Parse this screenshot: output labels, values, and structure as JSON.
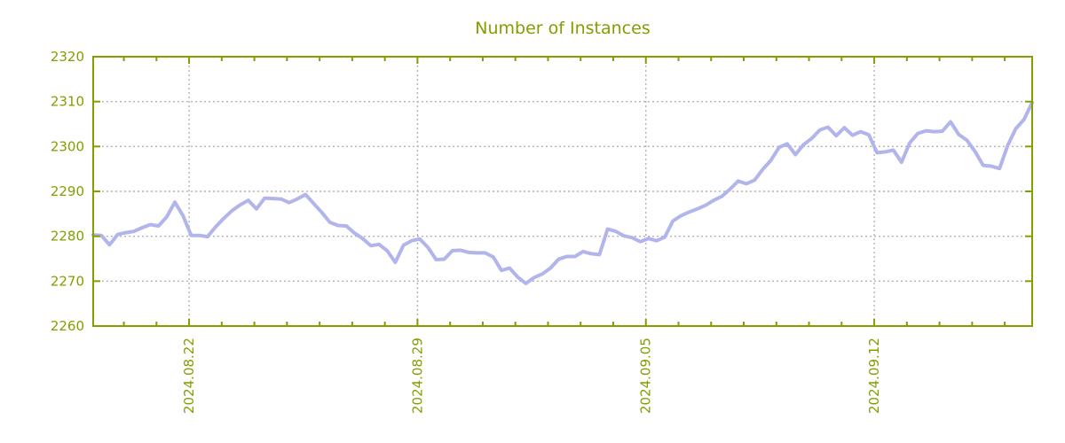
{
  "title": "Number of Instances",
  "colors": {
    "accent_olive": "#80a000",
    "series_line": "#b2b4ec",
    "gridline": "#b3b3b3",
    "background": "#ffffff"
  },
  "chart_data": {
    "type": "line",
    "title": "Number of Instances",
    "xlabel": "",
    "ylabel": "",
    "ylim": [
      2260,
      2320
    ],
    "yticks": [
      2260,
      2270,
      2280,
      2290,
      2300,
      2310,
      2320
    ],
    "grid": true,
    "legend": "none",
    "x_unit": "days relative to 2024.08.22",
    "x_domain_days": [
      -2.94,
      25.84
    ],
    "sample_interval_days": 0.25,
    "x_major_ticks": [
      {
        "day": 0,
        "label": "2024.08.22"
      },
      {
        "day": 7,
        "label": "2024.08.29"
      },
      {
        "day": 14,
        "label": "2024.09.05"
      },
      {
        "day": 21,
        "label": "2024.09.12"
      }
    ],
    "x_minor_day_range": [
      -2,
      25
    ],
    "values": [
      2280.3,
      2280.2,
      2278.1,
      2280.4,
      2280.8,
      2281.1,
      2281.9,
      2282.6,
      2282.3,
      2284.3,
      2287.6,
      2284.6,
      2280.2,
      2280.2,
      2279.9,
      2282.1,
      2284.0,
      2285.7,
      2287.0,
      2288.0,
      2286.1,
      2288.5,
      2288.4,
      2288.3,
      2287.5,
      2288.3,
      2289.3,
      2287.3,
      2285.3,
      2283.1,
      2282.4,
      2282.3,
      2280.7,
      2279.5,
      2277.9,
      2278.2,
      2276.8,
      2274.2,
      2278.0,
      2279.0,
      2279.4,
      2277.5,
      2274.8,
      2274.9,
      2276.8,
      2276.9,
      2276.4,
      2276.3,
      2276.3,
      2275.4,
      2272.4,
      2272.9,
      2270.9,
      2269.5,
      2270.8,
      2271.6,
      2272.9,
      2274.9,
      2275.5,
      2275.5,
      2276.6,
      2276.1,
      2275.9,
      2281.6,
      2281.1,
      2280.1,
      2279.7,
      2278.8,
      2279.5,
      2279.0,
      2279.8,
      2283.4,
      2284.6,
      2285.4,
      2286.1,
      2286.9,
      2288.0,
      2288.9,
      2290.5,
      2292.3,
      2291.7,
      2292.5,
      2294.9,
      2296.9,
      2299.8,
      2300.6,
      2298.2,
      2300.4,
      2301.8,
      2303.7,
      2304.3,
      2302.4,
      2304.2,
      2302.5,
      2303.3,
      2302.6,
      2298.6,
      2298.8,
      2299.2,
      2296.5,
      2300.8,
      2302.9,
      2303.5,
      2303.3,
      2303.4,
      2305.5,
      2302.7,
      2301.4,
      2298.9,
      2295.8,
      2295.6,
      2295.1,
      2300.2,
      2304.0,
      2306.0,
      2309.8
    ]
  }
}
